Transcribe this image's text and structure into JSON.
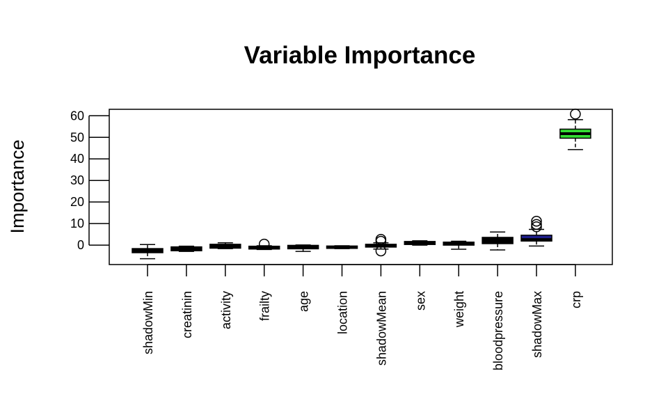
{
  "chart_data": {
    "type": "boxplot",
    "title": "Variable Importance",
    "xlabel": "",
    "ylabel": "Importance",
    "ylim": [
      -9,
      63
    ],
    "yticks": [
      0,
      10,
      20,
      30,
      40,
      50,
      60
    ],
    "grid": false,
    "legend": "none",
    "categories": [
      "shadowMin",
      "creatinin",
      "activity",
      "frailty",
      "age",
      "location",
      "shadowMean",
      "sex",
      "weight",
      "bloodpressure",
      "shadowMax",
      "crp"
    ],
    "boxes": [
      {
        "name": "shadowMin",
        "min": -6.3,
        "q1": -3.5,
        "median": -2.6,
        "q3": -1.6,
        "max": 0.3,
        "outliers": [],
        "color": "#000000"
      },
      {
        "name": "creatinin",
        "min": -2.9,
        "q1": -2.6,
        "median": -1.9,
        "q3": -0.8,
        "max": -0.5,
        "outliers": [],
        "color": "#000000"
      },
      {
        "name": "activity",
        "min": -1.6,
        "q1": -1.4,
        "median": -0.9,
        "q3": 0.4,
        "max": 1.1,
        "outliers": [],
        "color": "#000000"
      },
      {
        "name": "frailty",
        "min": -2.0,
        "q1": -1.8,
        "median": -1.3,
        "q3": -0.5,
        "max": -0.3,
        "outliers": [
          0.5
        ],
        "color": "#000000"
      },
      {
        "name": "age",
        "min": -2.9,
        "q1": -1.7,
        "median": -1.0,
        "q3": -0.1,
        "max": 0.1,
        "outliers": [],
        "color": "#000000"
      },
      {
        "name": "location",
        "min": -1.6,
        "q1": -1.5,
        "median": -1.0,
        "q3": -0.4,
        "max": -0.3,
        "outliers": [],
        "color": "#000000"
      },
      {
        "name": "shadowMean",
        "min": -1.8,
        "q1": -0.9,
        "median": -0.3,
        "q3": 0.4,
        "max": 1.1,
        "outliers": [
          2.7,
          1.8,
          -2.7
        ],
        "color": "#000000"
      },
      {
        "name": "sex",
        "min": 0.0,
        "q1": 0.3,
        "median": 1.0,
        "q3": 1.7,
        "max": 2.0,
        "outliers": [],
        "color": "#000000"
      },
      {
        "name": "weight",
        "min": -1.9,
        "q1": 0.0,
        "median": 0.7,
        "q3": 1.4,
        "max": 1.8,
        "outliers": [],
        "color": "#000000"
      },
      {
        "name": "bloodpressure",
        "min": -2.2,
        "q1": 0.7,
        "median": 1.8,
        "q3": 3.6,
        "max": 6.1,
        "outliers": [],
        "color": "#000000"
      },
      {
        "name": "shadowMax",
        "min": -0.4,
        "q1": 1.9,
        "median": 2.6,
        "q3": 4.6,
        "max": 7.3,
        "outliers": [
          8.5,
          9.6,
          11.1
        ],
        "color": "#1f1f8c"
      },
      {
        "name": "crp",
        "min": 44.3,
        "q1": 49.6,
        "median": 51.7,
        "q3": 53.8,
        "max": 58.2,
        "outliers": [
          60.8
        ],
        "color": "#33dd33"
      }
    ]
  }
}
